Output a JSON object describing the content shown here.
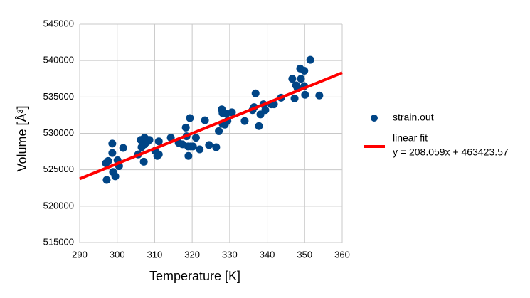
{
  "chart_data": {
    "type": "scatter",
    "xlabel": "Temperature [K]",
    "ylabel": "Volume [Å³]",
    "xlim": [
      290,
      360
    ],
    "xticks": [
      290,
      300,
      310,
      320,
      330,
      340,
      350,
      360
    ],
    "ylim": [
      515000,
      545000
    ],
    "yticks": [
      515000,
      520000,
      525000,
      530000,
      535000,
      540000,
      545000
    ],
    "grid": true,
    "series": [
      {
        "name": "strain.out",
        "type": "scatter",
        "color": "#004586",
        "x": [
          297.2,
          297.0,
          297.6,
          298.7,
          298.7,
          298.9,
          299.5,
          300.1,
          300.5,
          301.6,
          305.6,
          306.3,
          306.5,
          307.1,
          307.3,
          307.3,
          307.9,
          308.2,
          308.6,
          310.1,
          310.7,
          311.1,
          311.1,
          314.3,
          316.4,
          317.4,
          318.3,
          318.5,
          318.9,
          319.0,
          319.4,
          319.6,
          320.2,
          321.0,
          322.0,
          323.4,
          324.5,
          326.4,
          327.1,
          327.9,
          328.1,
          328.1,
          328.7,
          329.1,
          329.4,
          330.6,
          334.0,
          336.1,
          336.5,
          336.9,
          337.8,
          338.2,
          339.0,
          339.5,
          341.1,
          341.8,
          343.7,
          346.7,
          347.3,
          347.7,
          348.1,
          348.8,
          349.0,
          349.9,
          349.9,
          350.1,
          351.5,
          353.9
        ],
        "values": [
          523600,
          525900,
          526200,
          528600,
          527300,
          524700,
          524100,
          526300,
          525500,
          528000,
          527100,
          529100,
          528100,
          526100,
          529400,
          528500,
          528800,
          529100,
          529100,
          527600,
          526900,
          528900,
          527100,
          529400,
          528700,
          528500,
          530800,
          529600,
          528200,
          526900,
          532100,
          528200,
          528200,
          529400,
          527800,
          531800,
          528400,
          528100,
          530300,
          533300,
          532800,
          531300,
          531200,
          532700,
          531700,
          532900,
          531700,
          533200,
          533600,
          535500,
          531000,
          532600,
          534000,
          533200,
          534000,
          534000,
          534900,
          537500,
          534800,
          536600,
          536200,
          538900,
          537500,
          538600,
          536500,
          535300,
          540100,
          535200
        ]
      },
      {
        "name": "linear fit",
        "type": "line",
        "color": "#ff0000",
        "x": [
          290,
          360
        ],
        "values": [
          523760.7,
          538324.8
        ]
      }
    ],
    "annotations": [
      "y = 208.059x + 463423.57"
    ]
  }
}
